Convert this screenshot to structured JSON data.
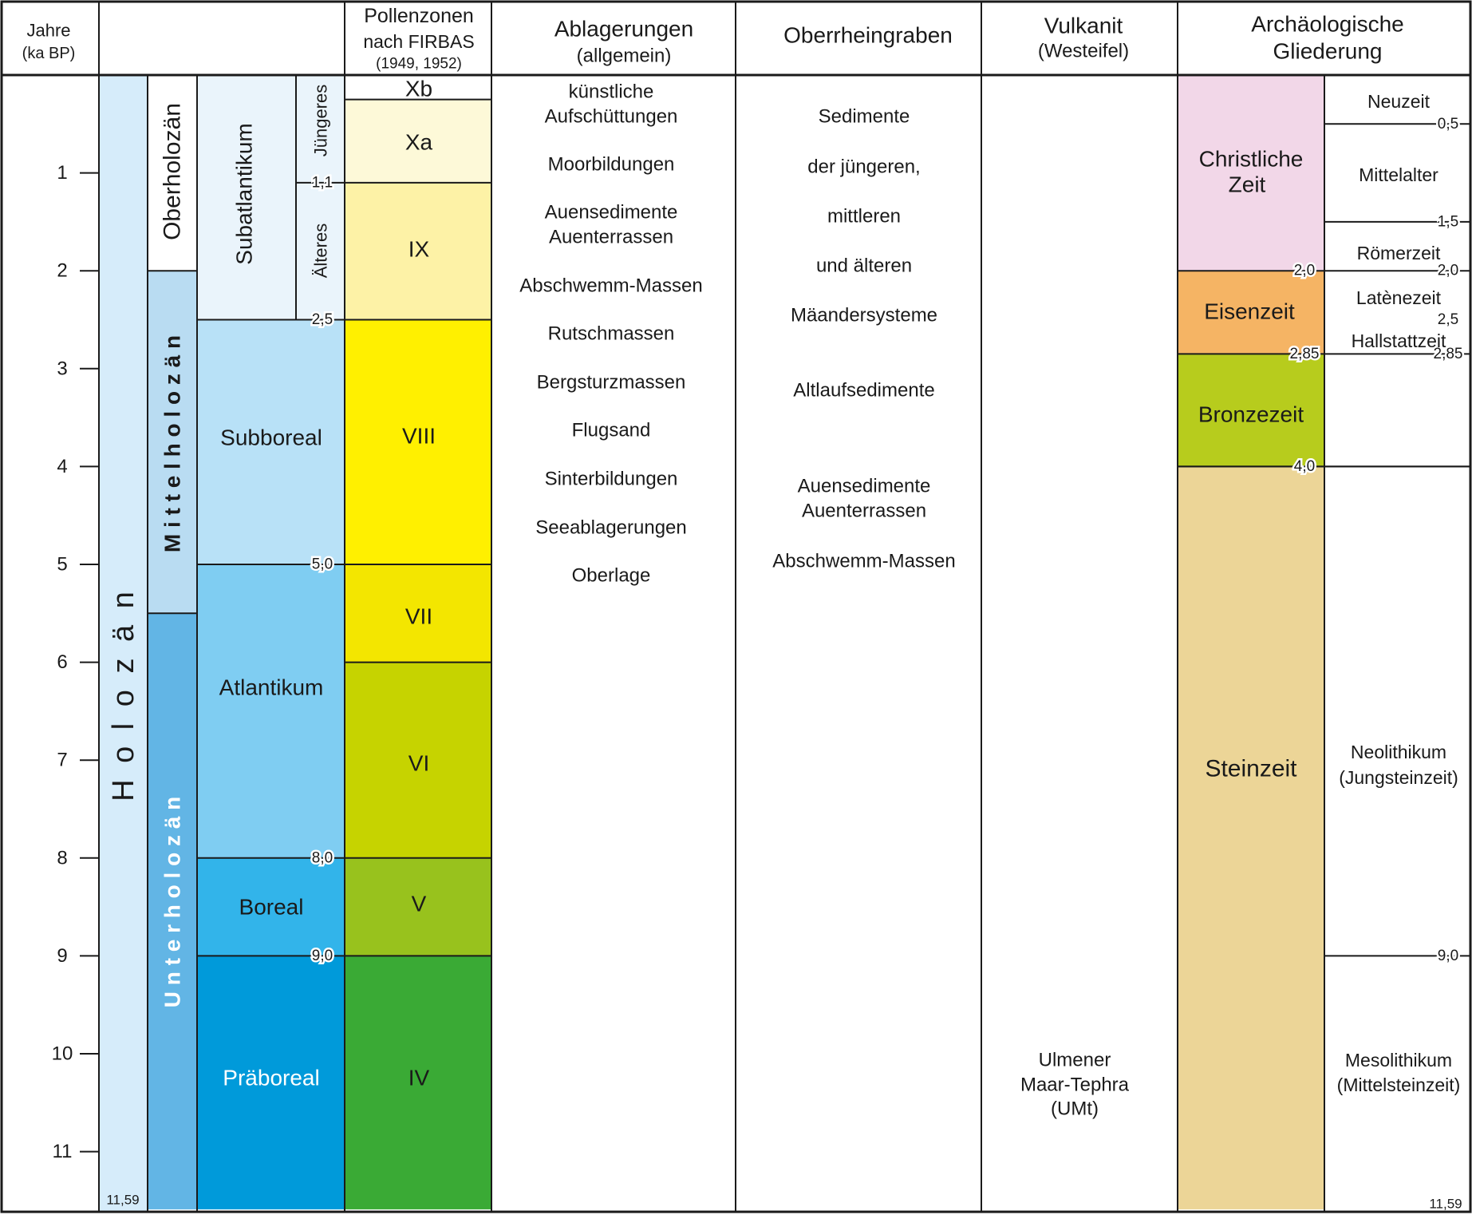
{
  "headers": {
    "years_line1": "Jahre",
    "years_line2": "(ka BP)",
    "pollen_line1": "Pollenzonen",
    "pollen_line2": "nach FIRBAS",
    "pollen_line3": "(1949, 1952)",
    "deposits_line1": "Ablagerungen",
    "deposits_line2": "(allgemein)",
    "rhine": "Oberrheingraben",
    "volcanic_line1": "Vulkanit",
    "volcanic_line2": "(Westeifel)",
    "archaeo_line1": "Archäologische",
    "archaeo_line2": "Gliederung"
  },
  "axis": {
    "ticks": [
      "1",
      "2",
      "3",
      "4",
      "5",
      "6",
      "7",
      "8",
      "9",
      "10",
      "11"
    ],
    "base_label": "11,59",
    "base_label_right": "11,59"
  },
  "epoch": {
    "label": "H o l o z ä n"
  },
  "sub_epochs": [
    {
      "label": "Oberholozän",
      "top": 0,
      "bottom": 2.0,
      "color": "#ffffff"
    },
    {
      "label": "M i t t e l h o l o z ä n",
      "top": 2.0,
      "bottom": 5.5,
      "color": "#b9dcf2"
    },
    {
      "label": "U n t e r h o l o z ä n",
      "top": 5.5,
      "bottom": 11.59,
      "color": "#62b5e5"
    }
  ],
  "chronozones": [
    {
      "label": "Subatlantikum",
      "top": 0,
      "bottom": 2.5,
      "color": "#eaf4fb",
      "text_color": "#1a1a1a"
    },
    {
      "label": "Subboreal",
      "top": 2.5,
      "bottom": 5.0,
      "color": "#b8e1f7",
      "text_color": "#1a1a1a"
    },
    {
      "label": "Atlantikum",
      "top": 5.0,
      "bottom": 8.0,
      "color": "#7fcdf2",
      "text_color": "#1a1a1a"
    },
    {
      "label": "Boreal",
      "top": 8.0,
      "bottom": 9.0,
      "color": "#32b4ea",
      "text_color": "#1a1a1a"
    },
    {
      "label": "Präboreal",
      "top": 9.0,
      "bottom": 11.59,
      "color": "#009ada",
      "text_color": "#ffffff"
    }
  ],
  "subatlantic_parts": [
    {
      "label": "Jüngeres",
      "top": 0,
      "bottom": 1.1
    },
    {
      "label": "Älteres",
      "top": 1.1,
      "bottom": 2.5
    }
  ],
  "boundary_labels": {
    "chrono": [
      {
        "value": 1.1,
        "text": "1,1"
      },
      {
        "value": 2.5,
        "text": "2,5"
      },
      {
        "value": 5.0,
        "text": "5,0"
      },
      {
        "value": 8.0,
        "text": "8,0"
      },
      {
        "value": 9.0,
        "text": "9,0"
      }
    ],
    "archaeo_mid": [
      {
        "value": 2.0,
        "text": "2,0"
      },
      {
        "value": 2.85,
        "text": "2,85"
      },
      {
        "value": 4.0,
        "text": "4,0"
      }
    ],
    "archaeo_right": [
      {
        "value": 0.5,
        "text": "0,5"
      },
      {
        "value": 1.5,
        "text": "1,5"
      },
      {
        "value": 2.0,
        "text": "2,0"
      },
      {
        "value": 2.5,
        "text": "2,5"
      },
      {
        "value": 2.85,
        "text": "2,85"
      },
      {
        "value": 9.0,
        "text": "9,0"
      }
    ]
  },
  "pollen_zones": [
    {
      "label": "Xb",
      "top": 0,
      "bottom": 0.25,
      "color": "#ffffff"
    },
    {
      "label": "Xa",
      "top": 0.25,
      "bottom": 1.1,
      "color": "#fdf9d8"
    },
    {
      "label": "IX",
      "top": 1.1,
      "bottom": 2.5,
      "color": "#fdf2a6"
    },
    {
      "label": "VIII",
      "top": 2.5,
      "bottom": 5.0,
      "color": "#fff000"
    },
    {
      "label": "VII",
      "top": 5.0,
      "bottom": 6.0,
      "color": "#f3e600"
    },
    {
      "label": "VI",
      "top": 6.0,
      "bottom": 8.0,
      "color": "#c6d300"
    },
    {
      "label": "V",
      "top": 8.0,
      "bottom": 9.0,
      "color": "#98c21d"
    },
    {
      "label": "IV",
      "top": 9.0,
      "bottom": 11.59,
      "color": "#3aaa35"
    }
  ],
  "deposits": [
    "künstliche",
    "Aufschüttungen",
    "Moorbildungen",
    "Auensedimente",
    "Auenterrassen",
    "Abschwemm-Massen",
    "Rutschmassen",
    "Bergsturzmassen",
    "Flugsand",
    "Sinterbildungen",
    "Seeablagerungen",
    "Oberlage"
  ],
  "rhine_graben": [
    "Sedimente",
    "der jüngeren,",
    "mittleren",
    "und älteren",
    "Mäandersysteme",
    "Altlaufsedimente",
    "Auensedimente",
    "Auenterrassen",
    "Abschwemm-Massen"
  ],
  "volcanic": [
    "Ulmener",
    "Maar-Tephra",
    "(UMt)"
  ],
  "archaeo_ages": [
    {
      "label": "Christliche Zeit",
      "line1": "Christliche",
      "line2": "Zeit",
      "top": 0,
      "bottom": 2.0,
      "color": "#f2d7e8"
    },
    {
      "label": "Eisenzeit",
      "line1": "Eisenzeit",
      "line2": "",
      "top": 2.0,
      "bottom": 2.85,
      "color": "#f5b464"
    },
    {
      "label": "Bronzezeit",
      "line1": "Bronzezeit",
      "line2": "",
      "top": 2.85,
      "bottom": 4.0,
      "color": "#b7cc1d"
    },
    {
      "label": "Steinzeit",
      "line1": "Steinzeit",
      "line2": "",
      "top": 4.0,
      "bottom": 11.59,
      "color": "#ecd597"
    }
  ],
  "archaeo_periods": [
    {
      "line1": "Neuzeit",
      "line2": ""
    },
    {
      "line1": "Mittelalter",
      "line2": ""
    },
    {
      "line1": "Römerzeit",
      "line2": ""
    },
    {
      "line1": "Latènezeit",
      "line2": ""
    },
    {
      "line1": "Hallstattzeit",
      "line2": ""
    },
    {
      "line1": "Neolithikum",
      "line2": "(Jungsteinzeit)"
    },
    {
      "line1": "Mesolithikum",
      "line2": "(Mittelsteinzeit)"
    }
  ]
}
